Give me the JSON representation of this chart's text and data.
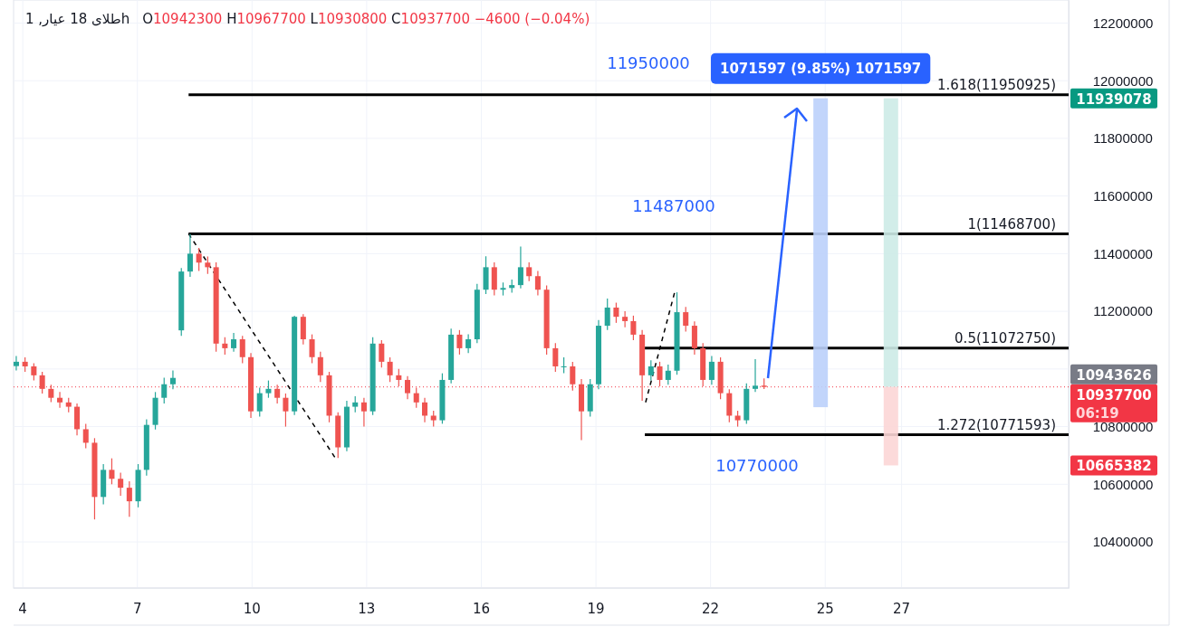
{
  "chart_data": {
    "type": "candlestick",
    "title": "طلای 18 عیار, 1h",
    "subtitle": "O10942300 H10967700 L10930800 C10937700 −4600 (−0.04%)",
    "x": [
      3.83,
      4.06,
      4.29,
      4.51,
      4.74,
      4.97,
      5.2,
      5.42,
      5.65,
      5.88,
      6.11,
      6.33,
      6.56,
      6.79,
      7.02,
      7.24,
      7.47,
      7.7,
      7.93,
      8.15,
      8.38,
      8.61,
      8.84,
      9.06,
      9.29,
      9.52,
      9.75,
      9.97,
      10.2,
      10.43,
      10.66,
      10.88,
      11.11,
      11.34,
      11.57,
      11.79,
      12.02,
      12.25,
      12.48,
      12.7,
      12.93,
      13.16,
      13.39,
      13.61,
      13.84,
      14.07,
      14.3,
      14.52,
      14.75,
      14.98,
      15.21,
      15.43,
      15.66,
      15.89,
      16.12,
      16.34,
      16.57,
      16.8,
      17.03,
      17.25,
      17.48,
      17.71,
      17.94,
      18.16,
      18.39,
      18.62,
      18.85,
      19.07,
      19.3,
      19.53,
      19.76,
      19.98,
      20.21,
      20.44,
      20.67,
      20.89,
      21.12,
      21.35,
      21.58,
      21.8,
      22.03,
      22.26,
      22.49,
      22.71,
      22.94,
      23.17,
      23.4
    ],
    "ohlc": [
      [
        11010000,
        11045000,
        10995000,
        11025000
      ],
      [
        11025000,
        11040000,
        10990000,
        11009000
      ],
      [
        11009000,
        11020000,
        10960000,
        10978000
      ],
      [
        10978000,
        10990000,
        10915000,
        10931000
      ],
      [
        10931000,
        10945000,
        10885000,
        10900000
      ],
      [
        10900000,
        10920000,
        10865000,
        10884000
      ],
      [
        10884000,
        10900000,
        10850000,
        10869000
      ],
      [
        10869000,
        10880000,
        10770000,
        10791000
      ],
      [
        10791000,
        10810000,
        10725000,
        10744000
      ],
      [
        10744000,
        10760000,
        10478000,
        10556000
      ],
      [
        10556000,
        10670000,
        10530000,
        10650000
      ],
      [
        10650000,
        10690000,
        10600000,
        10619000
      ],
      [
        10619000,
        10640000,
        10560000,
        10588000
      ],
      [
        10588000,
        10610000,
        10487000,
        10541000
      ],
      [
        10541000,
        10670000,
        10520000,
        10650000
      ],
      [
        10650000,
        10825000,
        10630000,
        10806000
      ],
      [
        10806000,
        10920000,
        10790000,
        10900000
      ],
      [
        10900000,
        10970000,
        10880000,
        10947000
      ],
      [
        10947000,
        10995000,
        10930000,
        10969000
      ],
      [
        11134000,
        11350000,
        11115000,
        11338000
      ],
      [
        11338000,
        11469000,
        11320000,
        11400000
      ],
      [
        11400000,
        11420000,
        11340000,
        11369000
      ],
      [
        11369000,
        11390000,
        11330000,
        11353000
      ],
      [
        11353000,
        11370000,
        11060000,
        11088000
      ],
      [
        11088000,
        11110000,
        11050000,
        11072000
      ],
      [
        11072000,
        11125000,
        11060000,
        11103000
      ],
      [
        11103000,
        11115000,
        11020000,
        11041000
      ],
      [
        11041000,
        11055000,
        10830000,
        10853000
      ],
      [
        10853000,
        10935000,
        10835000,
        10916000
      ],
      [
        10916000,
        10960000,
        10900000,
        10931000
      ],
      [
        10931000,
        10945000,
        10880000,
        10900000
      ],
      [
        10900000,
        10915000,
        10800000,
        10853000
      ],
      [
        10853000,
        11185000,
        10840000,
        11181000
      ],
      [
        11181000,
        11190000,
        11085000,
        11103000
      ],
      [
        11103000,
        11120000,
        11020000,
        11041000
      ],
      [
        11041000,
        11060000,
        10955000,
        10978000
      ],
      [
        10978000,
        10990000,
        10815000,
        10838000
      ],
      [
        10838000,
        10850000,
        10691000,
        10728000
      ],
      [
        10728000,
        10890000,
        10715000,
        10869000
      ],
      [
        10869000,
        10905000,
        10850000,
        10884000
      ],
      [
        10884000,
        10900000,
        10800000,
        10853000
      ],
      [
        10853000,
        11110000,
        10840000,
        11088000
      ],
      [
        11088000,
        11100000,
        11005000,
        11025000
      ],
      [
        11025000,
        11040000,
        10955000,
        10978000
      ],
      [
        10978000,
        11000000,
        10940000,
        10962000
      ],
      [
        10962000,
        10975000,
        10895000,
        10916000
      ],
      [
        10916000,
        10935000,
        10865000,
        10884000
      ],
      [
        10884000,
        10900000,
        10815000,
        10838000
      ],
      [
        10838000,
        10855000,
        10800000,
        10822000
      ],
      [
        10822000,
        10985000,
        10810000,
        10962000
      ],
      [
        10962000,
        11140000,
        10950000,
        11119000
      ],
      [
        11119000,
        11135000,
        11050000,
        11072000
      ],
      [
        11072000,
        11120000,
        11055000,
        11103000
      ],
      [
        11103000,
        11295000,
        11090000,
        11275000
      ],
      [
        11275000,
        11391000,
        11260000,
        11353000
      ],
      [
        11353000,
        11370000,
        11255000,
        11275000
      ],
      [
        11275000,
        11300000,
        11255000,
        11281000
      ],
      [
        11281000,
        11310000,
        11265000,
        11291000
      ],
      [
        11291000,
        11425000,
        11280000,
        11353000
      ],
      [
        11353000,
        11370000,
        11305000,
        11322000
      ],
      [
        11322000,
        11340000,
        11255000,
        11275000
      ],
      [
        11275000,
        11290000,
        11050000,
        11072000
      ],
      [
        11072000,
        11090000,
        10990000,
        11009000
      ],
      [
        11009000,
        11040000,
        10985000,
        11009000
      ],
      [
        11009000,
        11025000,
        10925000,
        10947000
      ],
      [
        10947000,
        10965000,
        10753000,
        10853000
      ],
      [
        10853000,
        10965000,
        10835000,
        10947000
      ],
      [
        10947000,
        11170000,
        10930000,
        11150000
      ],
      [
        11150000,
        11244000,
        11135000,
        11213000
      ],
      [
        11213000,
        11230000,
        11160000,
        11181000
      ],
      [
        11181000,
        11200000,
        11145000,
        11166000
      ],
      [
        11166000,
        11185000,
        11100000,
        11119000
      ],
      [
        11119000,
        11135000,
        10890000,
        10978000
      ],
      [
        10978000,
        11030000,
        10960000,
        11009000
      ],
      [
        11009000,
        11025000,
        10940000,
        10962000
      ],
      [
        10962000,
        11015000,
        10945000,
        10994000
      ],
      [
        10994000,
        11266000,
        10980000,
        11197000
      ],
      [
        11197000,
        11215000,
        11130000,
        11150000
      ],
      [
        11150000,
        11165000,
        11050000,
        11072000
      ],
      [
        11072000,
        11090000,
        10940000,
        10962000
      ],
      [
        10962000,
        11045000,
        10945000,
        11025000
      ],
      [
        11025000,
        11040000,
        10895000,
        10916000
      ],
      [
        10916000,
        10930000,
        10815000,
        10838000
      ],
      [
        10838000,
        10855000,
        10800000,
        10822000
      ],
      [
        10822000,
        10950000,
        10810000,
        10931000
      ],
      [
        10931000,
        11034000,
        10920000,
        10942000
      ],
      [
        10942300,
        10967700,
        10930800,
        10937700
      ]
    ],
    "series": [
      {
        "type": "line",
        "color": "#000000",
        "x": [
          8.34,
          31.37
        ],
        "values": [
          11950925,
          11950925
        ]
      },
      {
        "type": "line",
        "color": "#000000",
        "x": [
          8.34,
          31.37
        ],
        "values": [
          11468700,
          11468700
        ]
      },
      {
        "type": "line",
        "color": "#000000",
        "x": [
          20.28,
          31.37
        ],
        "values": [
          11072750,
          11072750
        ]
      },
      {
        "type": "line",
        "color": "#000000",
        "x": [
          20.28,
          31.37
        ],
        "values": [
          10771593,
          10771593
        ]
      },
      {
        "type": "line",
        "color": "#000000",
        "line_style": "dashed",
        "x": [
          8.34,
          12.18
        ],
        "values": [
          11469000,
          10691000
        ]
      },
      {
        "type": "line",
        "color": "#000000",
        "line_style": "dashed",
        "x": [
          20.3,
          21.06
        ],
        "values": [
          10884000,
          11266000
        ]
      },
      {
        "type": "bar",
        "color": "#bbd0fb",
        "x": [
          24.88
        ],
        "base": [
          10867481
        ],
        "values": [
          1071597
        ]
      },
      {
        "type": "bar",
        "color": "#cdebe7",
        "x": [
          26.72
        ],
        "base": [
          10937700
        ],
        "values": [
          1001378
        ]
      },
      {
        "type": "bar",
        "color": "#fcd6d6",
        "x": [
          26.72
        ],
        "base": [
          10665382
        ],
        "values": [
          272318
        ]
      }
    ],
    "xlim": [
      3.76,
      31.37
    ],
    "ylim": [
      10240000,
      12280000
    ],
    "xticks": [
      4,
      7,
      10,
      13,
      16,
      19,
      22,
      25,
      27
    ],
    "yticks": [
      10400000,
      10600000,
      10800000,
      {
        "value": 11000000,
        "label": null
      },
      11200000,
      11400000,
      11600000,
      11800000,
      12000000,
      12200000
    ],
    "grid": true,
    "ref_lines": [
      {
        "axis": "y",
        "value": 10937700,
        "label": "10937700",
        "color": "#f23645",
        "line_style": "dotted"
      }
    ],
    "annotations": [
      "11950000",
      "11487000",
      "10770000",
      "1071597 (9.85%) 1071597",
      "1.618(11950925)",
      "1(11468700)",
      "0.5(11072750)",
      "1.272(10771593)",
      "11939078",
      "10943626",
      "06:19",
      "10665382"
    ]
  }
}
